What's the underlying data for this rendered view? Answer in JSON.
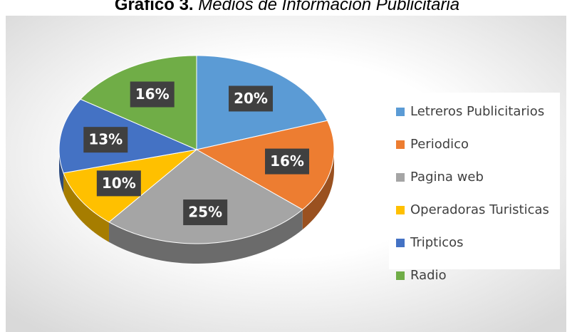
{
  "chart_data": {
    "type": "pie3d",
    "title": "Gráfico 3.",
    "subtitle": "Medios de Información Publicitaria",
    "categories": [
      "Letreros Publicitarios",
      "Periodico",
      "Pagina web",
      "Operadoras Turisticas",
      "Tripticos",
      "Radio"
    ],
    "values": [
      20,
      16,
      25,
      10,
      13,
      16
    ],
    "value_labels": [
      "20%",
      "16%",
      "25%",
      "10%",
      "13%",
      "16%"
    ],
    "colors": [
      "#5b9bd5",
      "#ed7d31",
      "#a5a5a5",
      "#ffc000",
      "#4472c4",
      "#70ad47"
    ],
    "legend": "right"
  }
}
